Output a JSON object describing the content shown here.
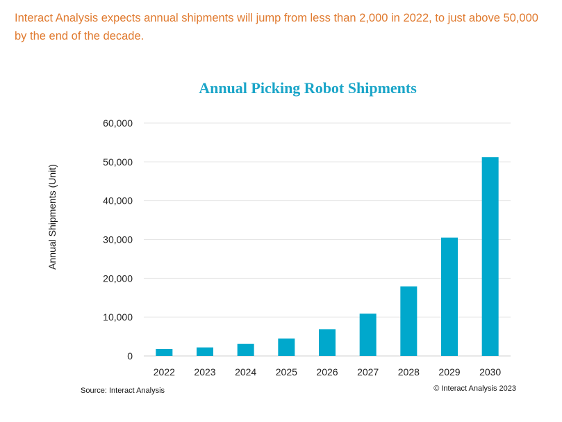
{
  "intro_text": "Interact Analysis expects annual shipments will jump from less than 2,000 in 2022, to just above 50,000 by the end of the decade.",
  "source": "Source: Interact Analysis",
  "copyright": "© Interact Analysis 2023",
  "colors": {
    "bar": "#00a8cc",
    "title": "#1aa5c8",
    "intro": "#e07a2f",
    "grid": "#e6e6e6"
  },
  "chart_data": {
    "type": "bar",
    "title": "Annual Picking Robot Shipments",
    "xlabel": "",
    "ylabel": "Annual Shipments (Unit)",
    "categories": [
      "2022",
      "2023",
      "2024",
      "2025",
      "2026",
      "2027",
      "2028",
      "2029",
      "2030"
    ],
    "values": [
      1800,
      2200,
      3100,
      4500,
      6900,
      10900,
      17900,
      30500,
      51200
    ],
    "ylim": [
      0,
      60000
    ],
    "yticks": [
      0,
      10000,
      20000,
      30000,
      40000,
      50000,
      60000
    ],
    "ytick_labels": [
      "0",
      "10,000",
      "20,000",
      "30,000",
      "40,000",
      "50,000",
      "60,000"
    ],
    "grid": true,
    "legend": "none"
  }
}
